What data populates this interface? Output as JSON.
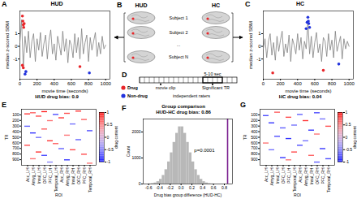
{
  "chart_data": [
    {
      "type": "line",
      "panel_label": "A",
      "title": "HUD",
      "x_label": "movie time (seconds)",
      "y_label": "median z-scored SBM",
      "annotation": "HUD drug bias: 0.9",
      "x": [
        0,
        20,
        40,
        60,
        80,
        100,
        120,
        140,
        160,
        180,
        200,
        220,
        240,
        260,
        280,
        300,
        320,
        340,
        360,
        380,
        400,
        420,
        440,
        460,
        480,
        500,
        520,
        540,
        560,
        580,
        600,
        620,
        640,
        660,
        680,
        700,
        720,
        740,
        760,
        780,
        800,
        820,
        840,
        860,
        880,
        900,
        920,
        940,
        960,
        980,
        1000
      ],
      "values": [
        0.3,
        2.1,
        -1.7,
        0.8,
        -0.5,
        1.2,
        -0.9,
        0.4,
        1.0,
        -1.2,
        0.6,
        -0.3,
        1.1,
        -0.8,
        0.2,
        0.9,
        -1.0,
        0.5,
        1.3,
        -0.6,
        0.2,
        -1.1,
        0.8,
        0.1,
        -0.7,
        1.2,
        -0.4,
        0.6,
        -1.3,
        0.5,
        0.1,
        -0.9,
        1.0,
        -0.5,
        0.7,
        -1.0,
        1.4,
        -0.6,
        0.3,
        0.9,
        -1.2,
        0.7,
        -0.3,
        0.4,
        1.1,
        -0.8,
        0.3,
        -0.6,
        0.8,
        -0.2,
        0.1
      ],
      "color": "#808080",
      "xlim": [
        0,
        1050
      ],
      "ylim": [
        -2.6,
        2.8
      ],
      "xticks": [
        0,
        200,
        400,
        600,
        800,
        1000
      ],
      "yticks": [
        -1,
        0,
        1
      ],
      "drug_points": {
        "color": "#e8262a",
        "x": [
          30,
          35,
          40,
          45,
          50,
          30,
          40,
          700
        ],
        "y": [
          2.4,
          2.0,
          1.7,
          1.5,
          1.8,
          -1.5,
          -1.7,
          -1.6
        ]
      },
      "nondrug_points": {
        "color": "#2233dd",
        "x": [
          60,
          70,
          810
        ],
        "y": [
          -2.2,
          -2.0,
          -2.1
        ]
      }
    },
    {
      "type": "line",
      "panel_label": "C",
      "title": "HC",
      "x_label": "movie time (seconds)",
      "y_label": "median z-scored SBM",
      "annotation": "HC drug bias: 0.04",
      "x": [
        0,
        20,
        40,
        60,
        80,
        100,
        120,
        140,
        160,
        180,
        200,
        220,
        240,
        260,
        280,
        300,
        320,
        340,
        360,
        380,
        400,
        420,
        440,
        460,
        480,
        500,
        520,
        540,
        560,
        580,
        600,
        620,
        640,
        660,
        680,
        700,
        720,
        740,
        760,
        780,
        800,
        820,
        840,
        860,
        880,
        900,
        920,
        940,
        960,
        980,
        1000
      ],
      "values": [
        -0.2,
        0.6,
        -0.9,
        0.4,
        1.0,
        -0.7,
        0.3,
        -1.1,
        0.8,
        -0.4,
        0.5,
        1.2,
        -0.8,
        0.2,
        -0.5,
        0.9,
        -1.2,
        0.6,
        0.1,
        -0.6,
        1.0,
        -0.3,
        0.7,
        -1.0,
        0.4,
        -0.2,
        2.0,
        -0.6,
        0.8,
        -0.9,
        0.3,
        1.1,
        -0.5,
        0.2,
        -1.2,
        0.7,
        0.4,
        -0.8,
        1.0,
        -0.3,
        0.5,
        -0.9,
        1.2,
        -0.4,
        0.2,
        0.8,
        -1.0,
        0.6,
        -0.2,
        0.4,
        0.0
      ],
      "color": "#808080",
      "xlim": [
        0,
        1050
      ],
      "ylim": [
        -2.6,
        2.8
      ],
      "xticks": [
        0,
        200,
        400,
        600,
        800,
        1000
      ],
      "yticks": [
        -1,
        0,
        1
      ],
      "drug_points": {
        "color": "#e8262a",
        "x": [
          110,
          700
        ],
        "y": [
          -2.1,
          -1.9
        ]
      },
      "nondrug_points": {
        "color": "#2233dd",
        "x": [
          500,
          510,
          520,
          530,
          540,
          525,
          880
        ],
        "y": [
          1.4,
          1.9,
          2.3,
          1.8,
          1.5,
          2.0,
          -1.4
        ]
      }
    },
    {
      "type": "heatmap",
      "panel_label": "E",
      "x_label": "ROI",
      "y_label": "TR",
      "categories": [
        "Acc_LH",
        "Amyg_LH",
        "Insul_LH",
        "OFC_LH",
        "PFC_LH",
        "Temporal_LH",
        "Acc_RH",
        "Amyg_RH",
        "Insul_RH",
        "OFC_RH",
        "PFC_RH",
        "Temporal_RH"
      ],
      "ylim": [
        0,
        1000
      ],
      "yticks": [
        100,
        200,
        300,
        400,
        500,
        600,
        700,
        800,
        900
      ],
      "cell_tr": 20,
      "cells": [
        {
          "roi": "Acc_LH",
          "tr": 80,
          "value": 0.9
        },
        {
          "roi": "Acc_LH",
          "tr": 300,
          "value": -0.7
        },
        {
          "roi": "Acc_LH",
          "tr": 640,
          "value": 0.8
        },
        {
          "roi": "Amyg_LH",
          "tr": 60,
          "value": 0.7
        },
        {
          "roi": "Amyg_LH",
          "tr": 420,
          "value": -0.9
        },
        {
          "roi": "Amyg_LH",
          "tr": 880,
          "value": 0.6
        },
        {
          "roi": "Insul_LH",
          "tr": 120,
          "value": 0.8
        },
        {
          "roi": "Insul_LH",
          "tr": 500,
          "value": -0.6
        },
        {
          "roi": "Insul_LH",
          "tr": 760,
          "value": 0.9
        },
        {
          "roi": "OFC_LH",
          "tr": 40,
          "value": 1.0
        },
        {
          "roi": "OFC_LH",
          "tr": 350,
          "value": 0.7
        },
        {
          "roi": "OFC_LH",
          "tr": 820,
          "value": -0.8
        },
        {
          "roi": "PFC_LH",
          "tr": 200,
          "value": 0.6
        },
        {
          "roi": "PFC_LH",
          "tr": 560,
          "value": 0.9
        },
        {
          "roi": "PFC_LH",
          "tr": 940,
          "value": -0.5
        },
        {
          "roi": "Temporal_LH",
          "tr": 90,
          "value": -0.8
        },
        {
          "roi": "Temporal_LH",
          "tr": 610,
          "value": 0.7
        },
        {
          "roi": "Acc_RH",
          "tr": 150,
          "value": 0.9
        },
        {
          "roi": "Acc_RH",
          "tr": 700,
          "value": -0.7
        },
        {
          "roi": "Amyg_RH",
          "tr": 70,
          "value": 0.8
        },
        {
          "roi": "Amyg_RH",
          "tr": 460,
          "value": 0.6
        },
        {
          "roi": "Amyg_RH",
          "tr": 900,
          "value": -0.9
        },
        {
          "roi": "Insul_RH",
          "tr": 260,
          "value": -0.6
        },
        {
          "roi": "Insul_RH",
          "tr": 720,
          "value": 0.8
        },
        {
          "roi": "OFC_RH",
          "tr": 30,
          "value": 0.9
        },
        {
          "roi": "OFC_RH",
          "tr": 540,
          "value": -0.7
        },
        {
          "roi": "PFC_RH",
          "tr": 180,
          "value": 0.7
        },
        {
          "roi": "PFC_RH",
          "tr": 800,
          "value": 0.8
        },
        {
          "roi": "Temporal_RH",
          "tr": 380,
          "value": -0.8
        },
        {
          "roi": "Temporal_RH",
          "tr": 960,
          "value": 0.6
        }
      ],
      "colorbar": {
        "label": "drug content",
        "range": [
          -1,
          1
        ],
        "ticks": [
          -1,
          -0.5,
          0,
          0.5,
          1
        ]
      }
    },
    {
      "type": "histogram",
      "panel_label": "F",
      "title": "Group comparison",
      "subtitle": "HUD-HC drug bias: 0.86",
      "x_label": "Drug bias group difference (HUD-HC)",
      "y_label": "Count",
      "annotation": "p=0.0001",
      "bins": [
        -0.6,
        -0.55,
        -0.5,
        -0.45,
        -0.4,
        -0.35,
        -0.3,
        -0.25,
        -0.2,
        -0.15,
        -0.1,
        -0.05,
        0,
        0.05,
        0.1,
        0.15,
        0.2,
        0.25,
        0.3,
        0.35,
        0.4,
        0.45,
        0.5,
        0.55,
        0.6
      ],
      "counts": [
        5,
        15,
        40,
        90,
        180,
        330,
        550,
        850,
        1200,
        1600,
        1950,
        2200,
        2200,
        1950,
        1600,
        1200,
        850,
        550,
        330,
        180,
        90,
        40,
        15,
        5
      ],
      "color": "#b8b8b8",
      "observed": {
        "value": 0.86,
        "color": "#7a1f8f"
      },
      "xlim": [
        -0.7,
        0.95
      ],
      "ylim": [
        0,
        2500
      ],
      "xticks": [
        -0.6,
        -0.4,
        -0.2,
        {
          "value": 0,
          "label": "0.0"
        },
        0.2,
        0.4,
        0.6,
        0.8
      ],
      "yticks": [
        0,
        1000,
        2000
      ]
    },
    {
      "type": "heatmap",
      "panel_label": "G",
      "x_label": "ROI",
      "y_label": "TR",
      "categories": [
        "Acc_LH",
        "Amyg_LH",
        "Insul_LH",
        "OFC_LH",
        "PFC_LH",
        "Temporal_LH",
        "Acc_RH",
        "Amyg_RH",
        "Insul_RH",
        "OFC_RH",
        "PFC_RH",
        "Temporal_RH"
      ],
      "ylim": [
        0,
        1000
      ],
      "yticks": [
        100,
        200,
        300,
        400,
        500,
        600,
        700,
        800,
        900
      ],
      "cell_tr": 20,
      "cells": [
        {
          "roi": "Acc_LH",
          "tr": 110,
          "value": -0.8
        },
        {
          "roi": "Acc_LH",
          "tr": 600,
          "value": 0.6
        },
        {
          "roi": "Amyg_LH",
          "tr": 240,
          "value": -0.9
        },
        {
          "roi": "Amyg_LH",
          "tr": 720,
          "value": -0.6
        },
        {
          "roi": "Insul_LH",
          "tr": 50,
          "value": 0.7
        },
        {
          "roi": "Insul_LH",
          "tr": 480,
          "value": -0.8
        },
        {
          "roi": "OFC_LH",
          "tr": 330,
          "value": -0.7
        },
        {
          "roi": "OFC_LH",
          "tr": 860,
          "value": -0.9
        },
        {
          "roi": "PFC_LH",
          "tr": 140,
          "value": 0.8
        },
        {
          "roi": "PFC_LH",
          "tr": 520,
          "value": -0.9
        },
        {
          "roi": "PFC_LH",
          "tr": 900,
          "value": 0.6
        },
        {
          "roi": "Temporal_LH",
          "tr": 280,
          "value": -0.6
        },
        {
          "roi": "Temporal_LH",
          "tr": 760,
          "value": 0.8
        },
        {
          "roi": "Acc_RH",
          "tr": 90,
          "value": -0.7
        },
        {
          "roi": "Acc_RH",
          "tr": 640,
          "value": -0.8
        },
        {
          "roi": "Amyg_RH",
          "tr": 200,
          "value": 0.9
        },
        {
          "roi": "Amyg_RH",
          "tr": 560,
          "value": -0.6
        },
        {
          "roi": "Insul_RH",
          "tr": 370,
          "value": -0.9
        },
        {
          "roi": "Insul_RH",
          "tr": 820,
          "value": 0.7
        },
        {
          "roi": "OFC_RH",
          "tr": 60,
          "value": -0.8
        },
        {
          "roi": "OFC_RH",
          "tr": 440,
          "value": 0.6
        },
        {
          "roi": "OFC_RH",
          "tr": 940,
          "value": -0.7
        },
        {
          "roi": "PFC_RH",
          "tr": 170,
          "value": -0.6
        },
        {
          "roi": "PFC_RH",
          "tr": 700,
          "value": -0.9
        },
        {
          "roi": "Temporal_RH",
          "tr": 300,
          "value": 0.8
        },
        {
          "roi": "Temporal_RH",
          "tr": 880,
          "value": -0.8
        }
      ],
      "colorbar": {
        "label": "drug content",
        "range": [
          -1,
          1
        ],
        "ticks": [
          -1,
          -0.5,
          0,
          0.5,
          1
        ]
      }
    }
  ],
  "diagram": {
    "B": {
      "panel_label": "B",
      "groups": [
        "HUD",
        "HC"
      ],
      "subjects": [
        "Subject 1",
        "Subject 2",
        "...",
        "Subject N"
      ]
    },
    "D": {
      "panel_label": "D",
      "clip_label": "movie clip",
      "duration": "5-10 sec",
      "marker_label": "Significant TR",
      "raters": "independent raters",
      "legend": [
        {
          "label": "Drug",
          "color": "#e8262a"
        },
        {
          "label": "Non-drug",
          "color": "#2233dd"
        }
      ]
    }
  }
}
